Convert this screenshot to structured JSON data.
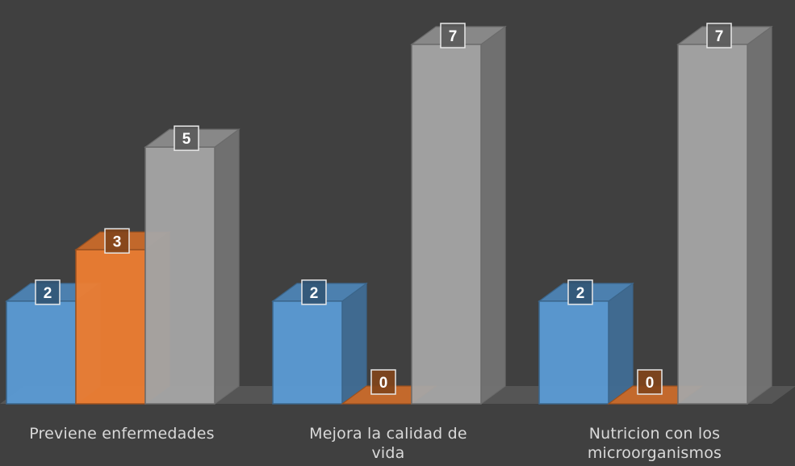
{
  "chart_data": {
    "type": "bar",
    "categories": [
      "Previene enfermedades",
      "Mejora la calidad de vida",
      "Nutricion con los microorganismos"
    ],
    "series": [
      {
        "values": [
          2,
          2,
          2
        ],
        "color": "#5b9bd5"
      },
      {
        "values": [
          3,
          0,
          0
        ],
        "color": "#ed7d31"
      },
      {
        "values": [
          5,
          7,
          7
        ],
        "color": "#a5a5a5"
      }
    ],
    "ylim": [
      0,
      7
    ],
    "title": "",
    "xlabel": "",
    "ylabel": "",
    "grid": false,
    "legend": "none",
    "background": "#404040"
  }
}
